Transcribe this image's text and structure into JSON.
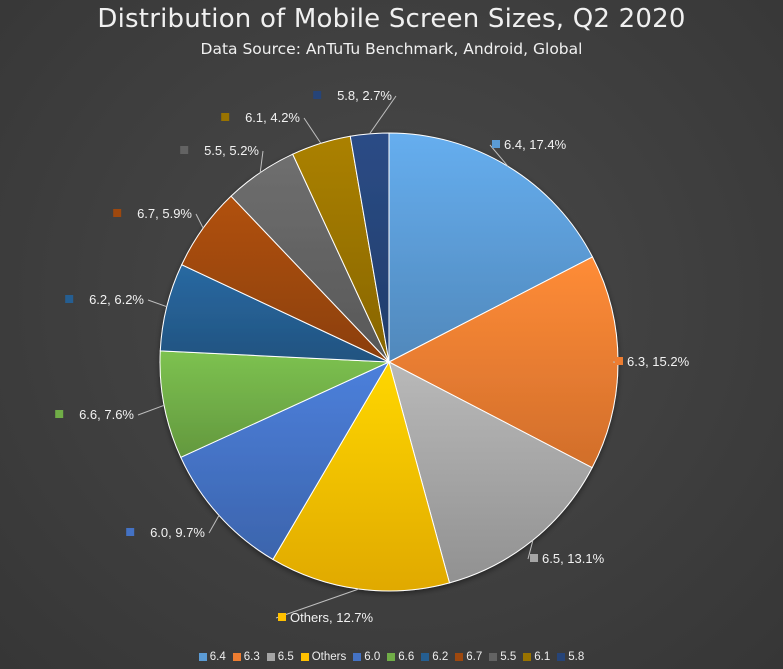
{
  "chart_data": {
    "type": "pie",
    "title": "Distribution of Mobile Screen Sizes, Q2 2020",
    "subtitle": "Data Source: AnTuTu Benchmark, Android, Global",
    "slices": [
      {
        "name": "6.4",
        "value": 17.4,
        "label": "6.4, 17.4%",
        "color": "#5b9bd5"
      },
      {
        "name": "6.3",
        "value": 15.2,
        "label": "6.3, 15.2%",
        "color": "#ed7d31"
      },
      {
        "name": "6.5",
        "value": 13.1,
        "label": "6.5, 13.1%",
        "color": "#a5a5a5"
      },
      {
        "name": "Others",
        "value": 12.7,
        "label": "Others, 12.7%",
        "color": "#ffc000"
      },
      {
        "name": "6.0",
        "value": 9.7,
        "label": "6.0, 9.7%",
        "color": "#4472c4"
      },
      {
        "name": "6.6",
        "value": 7.6,
        "label": "6.6, 7.6%",
        "color": "#70ad47"
      },
      {
        "name": "6.2",
        "value": 6.2,
        "label": "6.2, 6.2%",
        "color": "#255e91"
      },
      {
        "name": "6.7",
        "value": 5.9,
        "label": "6.7, 5.9%",
        "color": "#9e480e"
      },
      {
        "name": "5.5",
        "value": 5.2,
        "label": "5.5, 5.2%",
        "color": "#636363"
      },
      {
        "name": "6.1",
        "value": 4.2,
        "label": "6.1, 4.2%",
        "color": "#997300"
      },
      {
        "name": "5.8",
        "value": 2.7,
        "label": "5.8, 2.7%",
        "color": "#264478"
      }
    ],
    "legend_position": "bottom"
  }
}
